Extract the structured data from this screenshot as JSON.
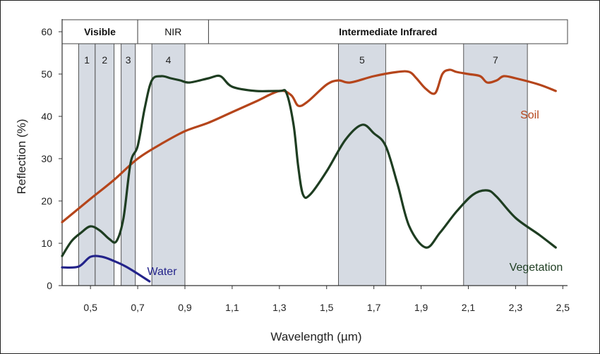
{
  "chart_data": {
    "type": "line",
    "xlabel": "Wavelength (µm)",
    "ylabel": "Reflection (%)",
    "xlim": [
      0.38,
      2.52
    ],
    "ylim": [
      0,
      63
    ],
    "x_ticks": [
      {
        "v": 0.5,
        "label": "0,5"
      },
      {
        "v": 0.7,
        "label": "0,7"
      },
      {
        "v": 0.9,
        "label": "0,9"
      },
      {
        "v": 1.1,
        "label": "1,1"
      },
      {
        "v": 1.3,
        "label": "1,3"
      },
      {
        "v": 1.5,
        "label": "1,5"
      },
      {
        "v": 1.7,
        "label": "1,7"
      },
      {
        "v": 1.9,
        "label": "1,9"
      },
      {
        "v": 2.1,
        "label": "2,1"
      },
      {
        "v": 2.3,
        "label": "2,3"
      },
      {
        "v": 2.5,
        "label": "2,5"
      }
    ],
    "y_ticks": [
      {
        "v": 0,
        "label": "0"
      },
      {
        "v": 10,
        "label": "10"
      },
      {
        "v": 20,
        "label": "20"
      },
      {
        "v": 30,
        "label": "30"
      },
      {
        "v": 40,
        "label": "40"
      },
      {
        "v": 50,
        "label": "50"
      },
      {
        "v": 60,
        "label": "60"
      }
    ],
    "regions": [
      {
        "label": "Visible",
        "from": 0.38,
        "to": 0.7,
        "bold": true
      },
      {
        "label": "NIR",
        "from": 0.7,
        "to": 1.0,
        "bold": false
      },
      {
        "label": "Intermediate Infrared",
        "from": 1.0,
        "to": 2.52,
        "bold": true
      }
    ],
    "bands": [
      {
        "label": "1",
        "from": 0.45,
        "to": 0.52
      },
      {
        "label": "2",
        "from": 0.52,
        "to": 0.6
      },
      {
        "label": "3",
        "from": 0.63,
        "to": 0.69
      },
      {
        "label": "4",
        "from": 0.76,
        "to": 0.9
      },
      {
        "label": "5",
        "from": 1.55,
        "to": 1.75
      },
      {
        "label": "7",
        "from": 2.08,
        "to": 2.35
      }
    ],
    "series": [
      {
        "name": "Soil",
        "color": "#b5451b",
        "x": [
          0.38,
          0.5,
          0.6,
          0.7,
          0.8,
          0.9,
          1.0,
          1.1,
          1.2,
          1.3,
          1.35,
          1.38,
          1.42,
          1.5,
          1.55,
          1.6,
          1.7,
          1.8,
          1.85,
          1.88,
          1.92,
          1.96,
          1.99,
          2.02,
          2.05,
          2.1,
          2.15,
          2.18,
          2.22,
          2.25,
          2.3,
          2.4,
          2.47
        ],
        "y": [
          15,
          20.5,
          25,
          30,
          33.5,
          36.5,
          38.5,
          41,
          43.5,
          46,
          45,
          42.5,
          43.5,
          47.5,
          48.5,
          48,
          49.5,
          50.5,
          50.5,
          49,
          46.5,
          45.5,
          50,
          51,
          50.5,
          50,
          49.5,
          48,
          48.5,
          49.5,
          49,
          47.5,
          46
        ]
      },
      {
        "name": "Vegetation",
        "color": "#1e3d21",
        "x": [
          0.38,
          0.42,
          0.46,
          0.5,
          0.54,
          0.58,
          0.61,
          0.64,
          0.67,
          0.7,
          0.73,
          0.76,
          0.8,
          0.84,
          0.88,
          0.92,
          1.0,
          1.05,
          1.1,
          1.2,
          1.3,
          1.33,
          1.36,
          1.38,
          1.4,
          1.43,
          1.5,
          1.58,
          1.65,
          1.7,
          1.75,
          1.8,
          1.85,
          1.92,
          1.98,
          2.05,
          2.12,
          2.18,
          2.22,
          2.3,
          2.4,
          2.47
        ],
        "y": [
          7,
          10.5,
          12.5,
          14,
          13,
          11,
          10.5,
          16,
          29,
          33,
          42,
          48.5,
          49.5,
          49,
          48.5,
          48,
          49,
          49.5,
          47,
          46,
          46,
          45.5,
          38,
          28,
          21.5,
          21.5,
          27,
          34.5,
          38,
          36,
          33,
          24,
          14,
          9,
          12.5,
          17.5,
          21.5,
          22.5,
          21,
          16,
          12,
          9
        ]
      },
      {
        "name": "Water",
        "color": "#23238a",
        "x": [
          0.38,
          0.45,
          0.5,
          0.55,
          0.6,
          0.65,
          0.7,
          0.75
        ],
        "y": [
          4.3,
          4.5,
          6.8,
          6.8,
          5.8,
          4.5,
          2.8,
          1
        ]
      }
    ]
  }
}
